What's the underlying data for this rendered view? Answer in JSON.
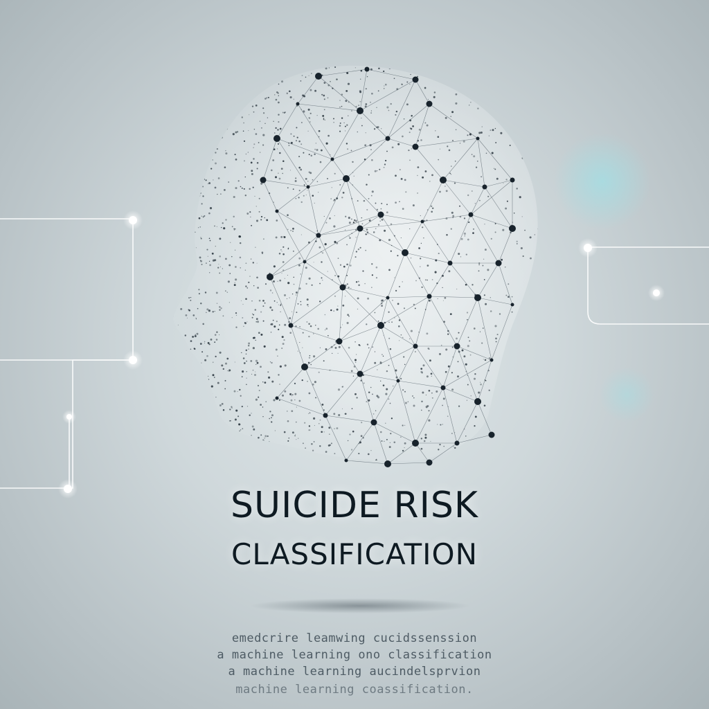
{
  "title": {
    "line1": "SUICIDE RISK",
    "line2": "CLASSIFICATION"
  },
  "subtext_lines": [
    "emedcrire leamwing cucidssenssion",
    "a machine learning ono classification",
    "a machine learning aucindelsprvion",
    "machine learning coassification."
  ],
  "colors": {
    "background": "#c9d3d6",
    "title_text": "#0e1a22",
    "network_node": "#1a2530",
    "circuit_line": "#ffffff"
  },
  "icons": [
    "head-network-icon",
    "circuit-line-left",
    "circuit-line-right"
  ]
}
